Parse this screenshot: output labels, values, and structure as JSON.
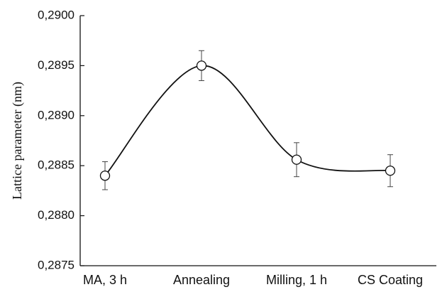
{
  "chart_data": {
    "type": "line",
    "y_label": "Lattice parameter (nm)",
    "categories": [
      "MA, 3 h",
      "Annealing",
      "Milling, 1 h",
      "CS Coating"
    ],
    "values": [
      0.2884,
      0.2895,
      0.28856,
      0.28845
    ],
    "errors": [
      0.00014,
      0.00015,
      0.00017,
      0.00016
    ],
    "color": "#111111",
    "ylim": [
      0.2875,
      0.29
    ],
    "yticks": [
      {
        "value": 0.2875,
        "label": "0,2875"
      },
      {
        "value": 0.288,
        "label": "0,2880"
      },
      {
        "value": 0.2885,
        "label": "0,2885"
      },
      {
        "value": 0.289,
        "label": "0,2890"
      },
      {
        "value": 0.2895,
        "label": "0,2895"
      },
      {
        "value": 0.29,
        "label": "0,2900"
      }
    ]
  }
}
